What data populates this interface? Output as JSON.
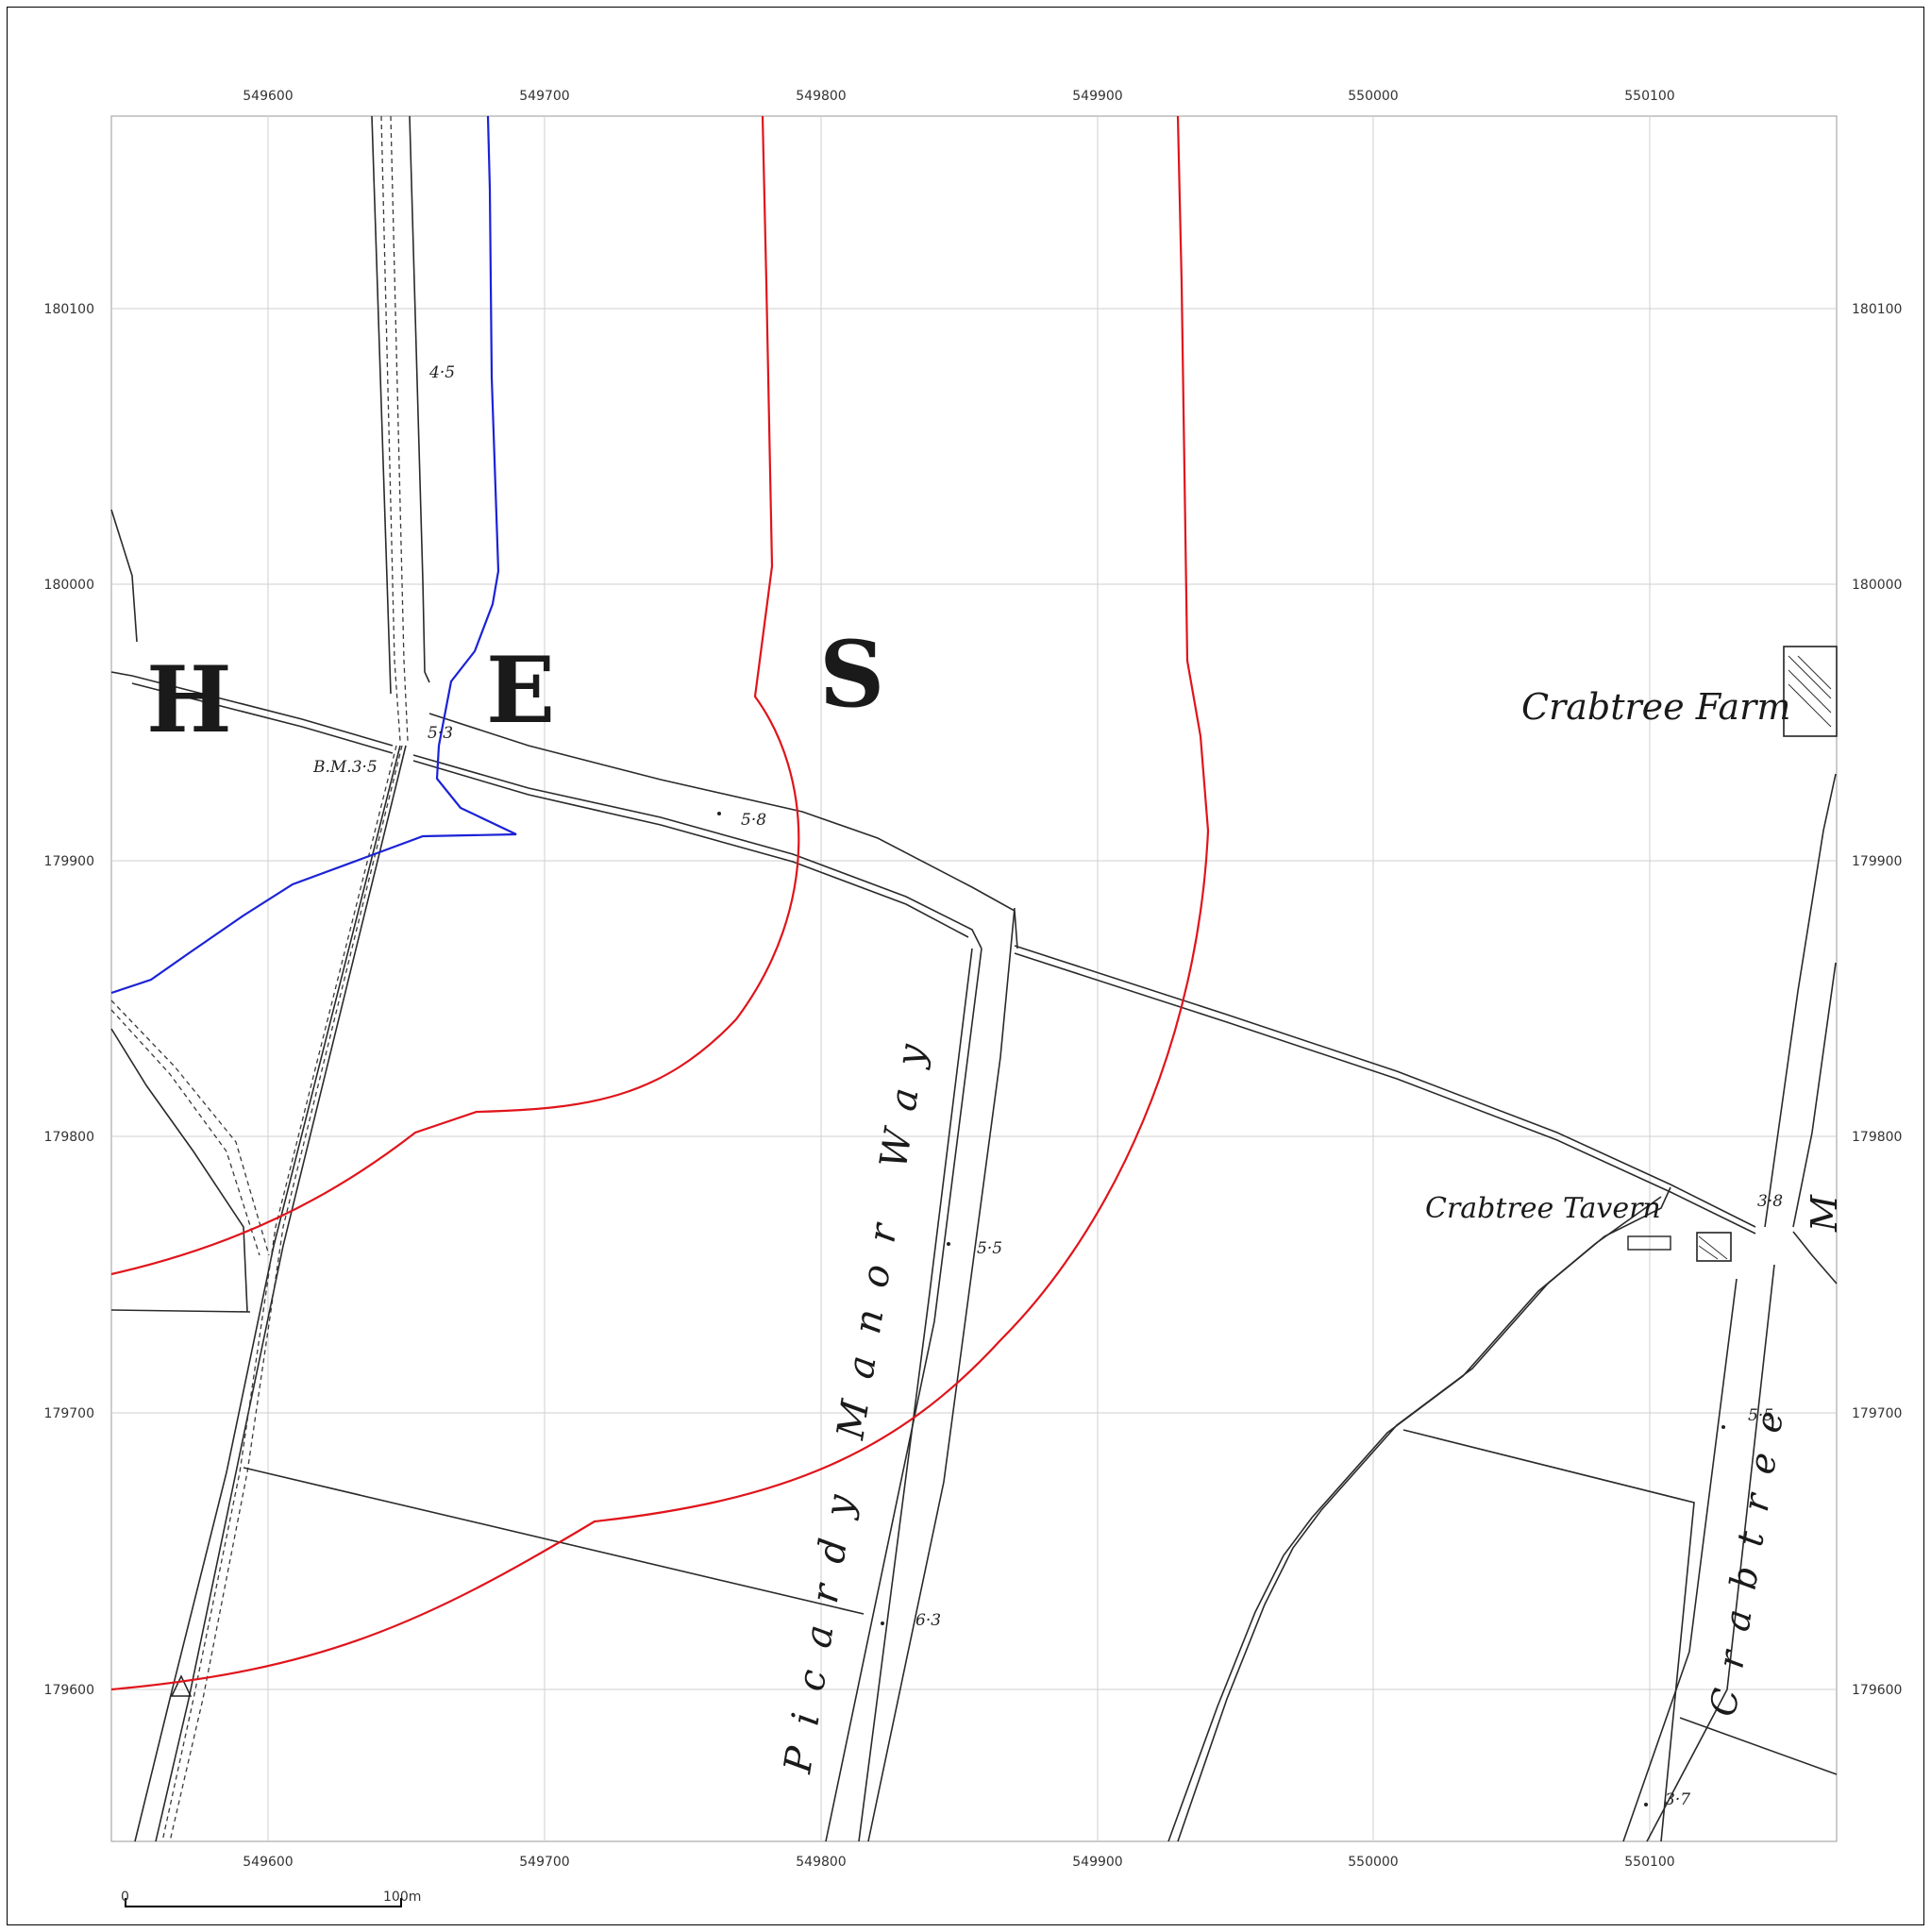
{
  "axes": {
    "x_ticks": [
      "549600",
      "549700",
      "549800",
      "549900",
      "550000",
      "550100"
    ],
    "y_ticks": [
      "180100",
      "180000",
      "179900",
      "179800",
      "179700",
      "179600"
    ]
  },
  "map_labels": {
    "letter_h": "H",
    "letter_e": "E",
    "letter_s": "S",
    "crabtree_farm": "Crabtree Farm",
    "crabtree_tavern": "Crabtree Tavern",
    "picardy_manor_way": "Picardy Manor Way",
    "crabtree_road_partial": "Crabtree",
    "road_edge_letter": "M"
  },
  "spot_heights": {
    "h1": "4·5",
    "h2": "5·3",
    "h3": "B.M.3·5",
    "h4": "5·8",
    "h5": "5·5",
    "h6": "6·3",
    "h7": "3·8",
    "h8": "5·5",
    "h9": "3·7"
  },
  "scale_bar": {
    "start": "0",
    "end": "100m"
  },
  "colors": {
    "boundary_red": "#e0141b",
    "boundary_blue": "#1b22d6",
    "grid": "#cfcfcf"
  }
}
